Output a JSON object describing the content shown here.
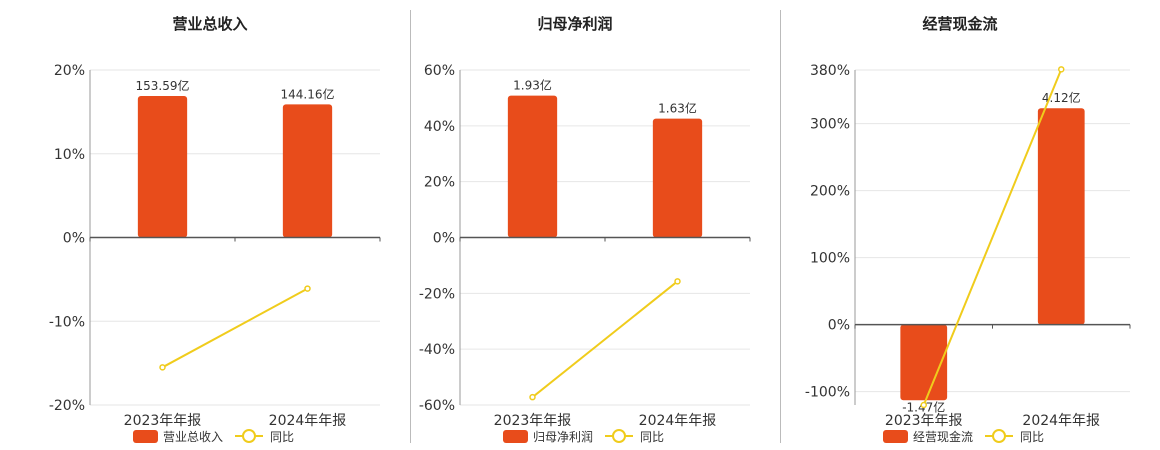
{
  "colors": {
    "bar": "#E84C1B",
    "line": "#F0CC1C",
    "axis": "#555555",
    "grid": "#E6E6E6",
    "divider": "#BBBBBB",
    "text": "#333333"
  },
  "chart_data": [
    {
      "type": "bar",
      "title": "营业总收入",
      "categories": [
        "2023年年报",
        "2024年年报"
      ],
      "yticks": [
        "20%",
        "10%",
        "0%",
        "-10%",
        "-20%"
      ],
      "ylim": [
        -20,
        20
      ],
      "series": [
        {
          "name": "营业总收入",
          "type": "bar",
          "value_labels": [
            "153.59亿",
            "144.16亿"
          ],
          "percent": [
            16.9,
            15.9
          ]
        },
        {
          "name": "同比",
          "type": "line",
          "values": [
            -15.5,
            -6.1
          ]
        }
      ],
      "legend": "bottom"
    },
    {
      "type": "bar",
      "title": "归母净利润",
      "categories": [
        "2023年年报",
        "2024年年报"
      ],
      "yticks": [
        "60%",
        "40%",
        "20%",
        "0%",
        "-20%",
        "-40%",
        "-60%"
      ],
      "ylim": [
        -60,
        60
      ],
      "series": [
        {
          "name": "归母净利润",
          "type": "bar",
          "value_labels": [
            "1.93亿",
            "1.63亿"
          ],
          "percent": [
            50.8,
            42.6
          ]
        },
        {
          "name": "同比",
          "type": "line",
          "values": [
            -57.2,
            -15.7
          ]
        }
      ],
      "legend": "bottom"
    },
    {
      "type": "bar",
      "title": "经营现金流",
      "categories": [
        "2023年年报",
        "2024年年报"
      ],
      "yticks": [
        "380%",
        "300%",
        "200%",
        "100%",
        "0%",
        "-100%"
      ],
      "ylim": [
        -120,
        380
      ],
      "series": [
        {
          "name": "经营现金流",
          "type": "bar",
          "value_labels": [
            "-1.47亿",
            "4.12亿"
          ],
          "percent": [
            -113,
            323
          ]
        },
        {
          "name": "同比",
          "type": "line",
          "values": [
            -120,
            381
          ]
        }
      ],
      "legend": "bottom"
    }
  ]
}
